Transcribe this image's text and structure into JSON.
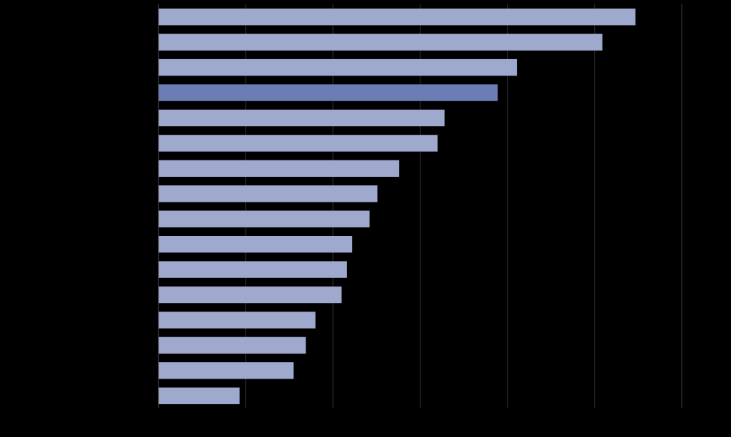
{
  "chart_data": {
    "type": "bar",
    "orientation": "horizontal",
    "title": "",
    "xlabel": "",
    "ylabel": "",
    "categories": [
      "",
      "",
      "",
      "",
      "",
      "",
      "",
      "",
      "",
      "",
      "",
      "",
      "",
      "",
      "",
      ""
    ],
    "values": [
      54.7,
      50.9,
      41.1,
      38.9,
      32.8,
      32.0,
      27.6,
      25.1,
      24.2,
      22.2,
      21.6,
      21.0,
      18.0,
      16.9,
      15.5,
      9.3
    ],
    "highlight_index": 3,
    "xlim": [
      0,
      60
    ],
    "x_gridlines": [
      0,
      10,
      20,
      30,
      40,
      50,
      60
    ],
    "grid": true,
    "legend": "none",
    "colors": {
      "background": "#000000",
      "bar": "#9ea9cd",
      "bar_highlight": "#6b7db5",
      "gridline": "#3a3a3a",
      "axis": "#555555"
    }
  }
}
